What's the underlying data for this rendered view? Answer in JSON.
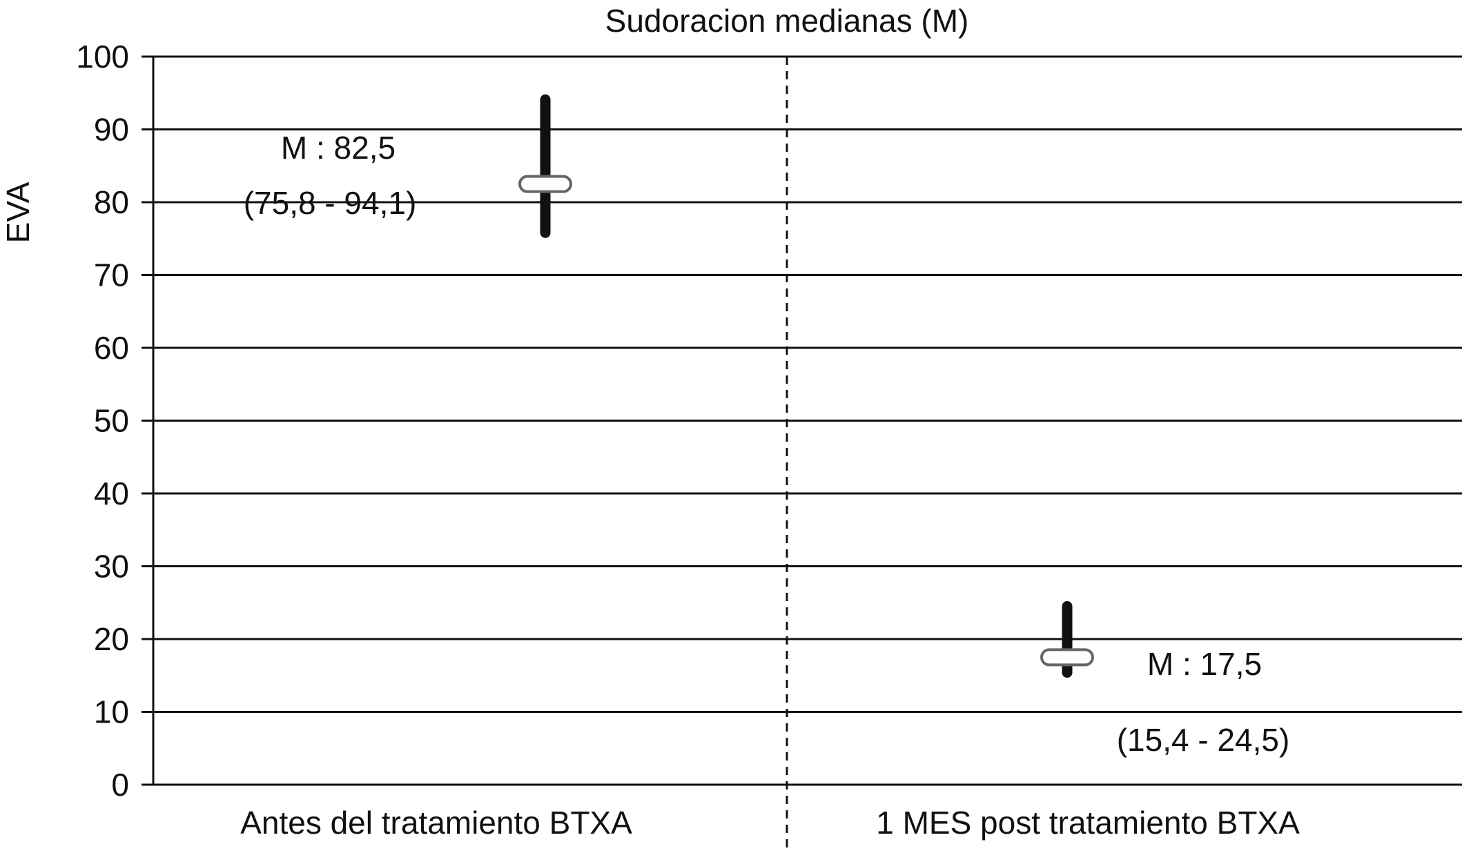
{
  "chart_data": {
    "type": "range",
    "title": "Sudoracion medianas (M)",
    "ylabel": "EVA",
    "xlabel": "",
    "ylim": [
      0,
      100
    ],
    "yticks": [
      0,
      10,
      20,
      30,
      40,
      50,
      60,
      70,
      80,
      90,
      100
    ],
    "grid": true,
    "categories": [
      "Antes del tratamiento BTXA",
      "1 MES post tratamiento BTXA"
    ],
    "series": [
      {
        "median": 82.5,
        "low": 75.8,
        "high": 94.1,
        "median_label": "M : 82,5",
        "range_label": "(75,8 - 94,1)"
      },
      {
        "median": 17.5,
        "low": 15.4,
        "high": 24.5,
        "median_label": "M : 17,5",
        "range_label": "(15,4  - 24,5)"
      }
    ],
    "colors": {
      "line": "#111111",
      "grid": "#111111",
      "marker_stroke": "#666666",
      "marker_fill": "#ffffff"
    }
  }
}
